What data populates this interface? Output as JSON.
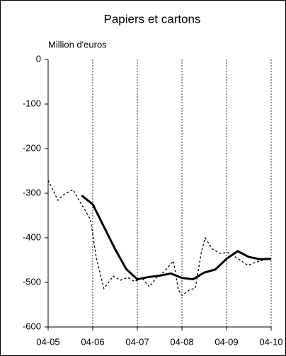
{
  "chart_data": {
    "type": "line",
    "title": "Papiers et cartons",
    "ylabel": "Million d'euros",
    "xlim": [
      0,
      5
    ],
    "xticks": [
      {
        "value": 0,
        "label": "04-05"
      },
      {
        "value": 1,
        "label": "04-06"
      },
      {
        "value": 2,
        "label": "04-07"
      },
      {
        "value": 3,
        "label": "04-08"
      },
      {
        "value": 4,
        "label": "04-09"
      },
      {
        "value": 5,
        "label": "04-10"
      }
    ],
    "ylim": [
      -600,
      0
    ],
    "yticks": [
      -600,
      -500,
      -400,
      -300,
      -200,
      -100,
      0
    ],
    "grid": true,
    "series": [
      {
        "color": "#000000",
        "dash": true,
        "width": 1.3,
        "x": [
          0,
          0.22,
          0.35,
          0.56,
          0.71,
          0.84,
          0.95,
          1.08,
          1.25,
          1.46,
          1.62,
          1.78,
          1.94,
          2.1,
          2.27,
          2.43,
          2.6,
          2.81,
          2.92,
          3.0,
          3.17,
          3.3,
          3.44,
          3.52,
          3.68,
          3.86,
          4.03,
          4.25,
          4.48,
          4.67,
          4.87,
          5.0
        ],
        "values": [
          -271,
          -316,
          -303,
          -292,
          -319,
          -340,
          -359,
          -445,
          -514,
          -486,
          -495,
          -489,
          -498,
          -489,
          -510,
          -489,
          -476,
          -452,
          -517,
          -529,
          -517,
          -513,
          -430,
          -400,
          -425,
          -435,
          -433,
          -446,
          -462,
          -454,
          -449,
          -449
        ]
      },
      {
        "color": "#000000",
        "dash": false,
        "width": 3,
        "x": [
          0.75,
          1.0,
          1.25,
          1.5,
          1.75,
          2.0,
          2.25,
          2.5,
          2.75,
          3.0,
          3.25,
          3.5,
          3.75,
          4.0,
          4.25,
          4.5,
          4.75,
          5.0
        ],
        "values": [
          -305,
          -325,
          -375,
          -425,
          -470,
          -493,
          -488,
          -485,
          -480,
          -490,
          -493,
          -478,
          -471,
          -447,
          -430,
          -443,
          -448,
          -447
        ]
      }
    ]
  }
}
